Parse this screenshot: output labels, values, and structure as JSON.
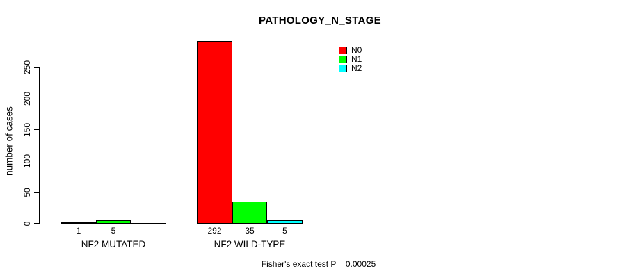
{
  "chart_data": {
    "type": "bar",
    "title": "PATHOLOGY_N_STAGE",
    "ylabel": "number of cases",
    "xlabel": "",
    "ylim": [
      0,
      292
    ],
    "yticks": [
      0,
      50,
      100,
      150,
      200,
      250
    ],
    "grid": false,
    "legend_position": "top-right",
    "legend": [
      {
        "label": "N0",
        "color": "#ff0000"
      },
      {
        "label": "N1",
        "color": "#00ff00"
      },
      {
        "label": "N2",
        "color": "#00ffff"
      }
    ],
    "groups": [
      {
        "label": "NF2 MUTATED",
        "values": [
          1,
          5,
          0
        ],
        "value_labels": [
          "1",
          "5",
          ""
        ]
      },
      {
        "label": "NF2 WILD-TYPE",
        "values": [
          292,
          35,
          5
        ],
        "value_labels": [
          "292",
          "35",
          "5"
        ]
      }
    ],
    "footnote": "Fisher's exact test P = 0.00025"
  }
}
